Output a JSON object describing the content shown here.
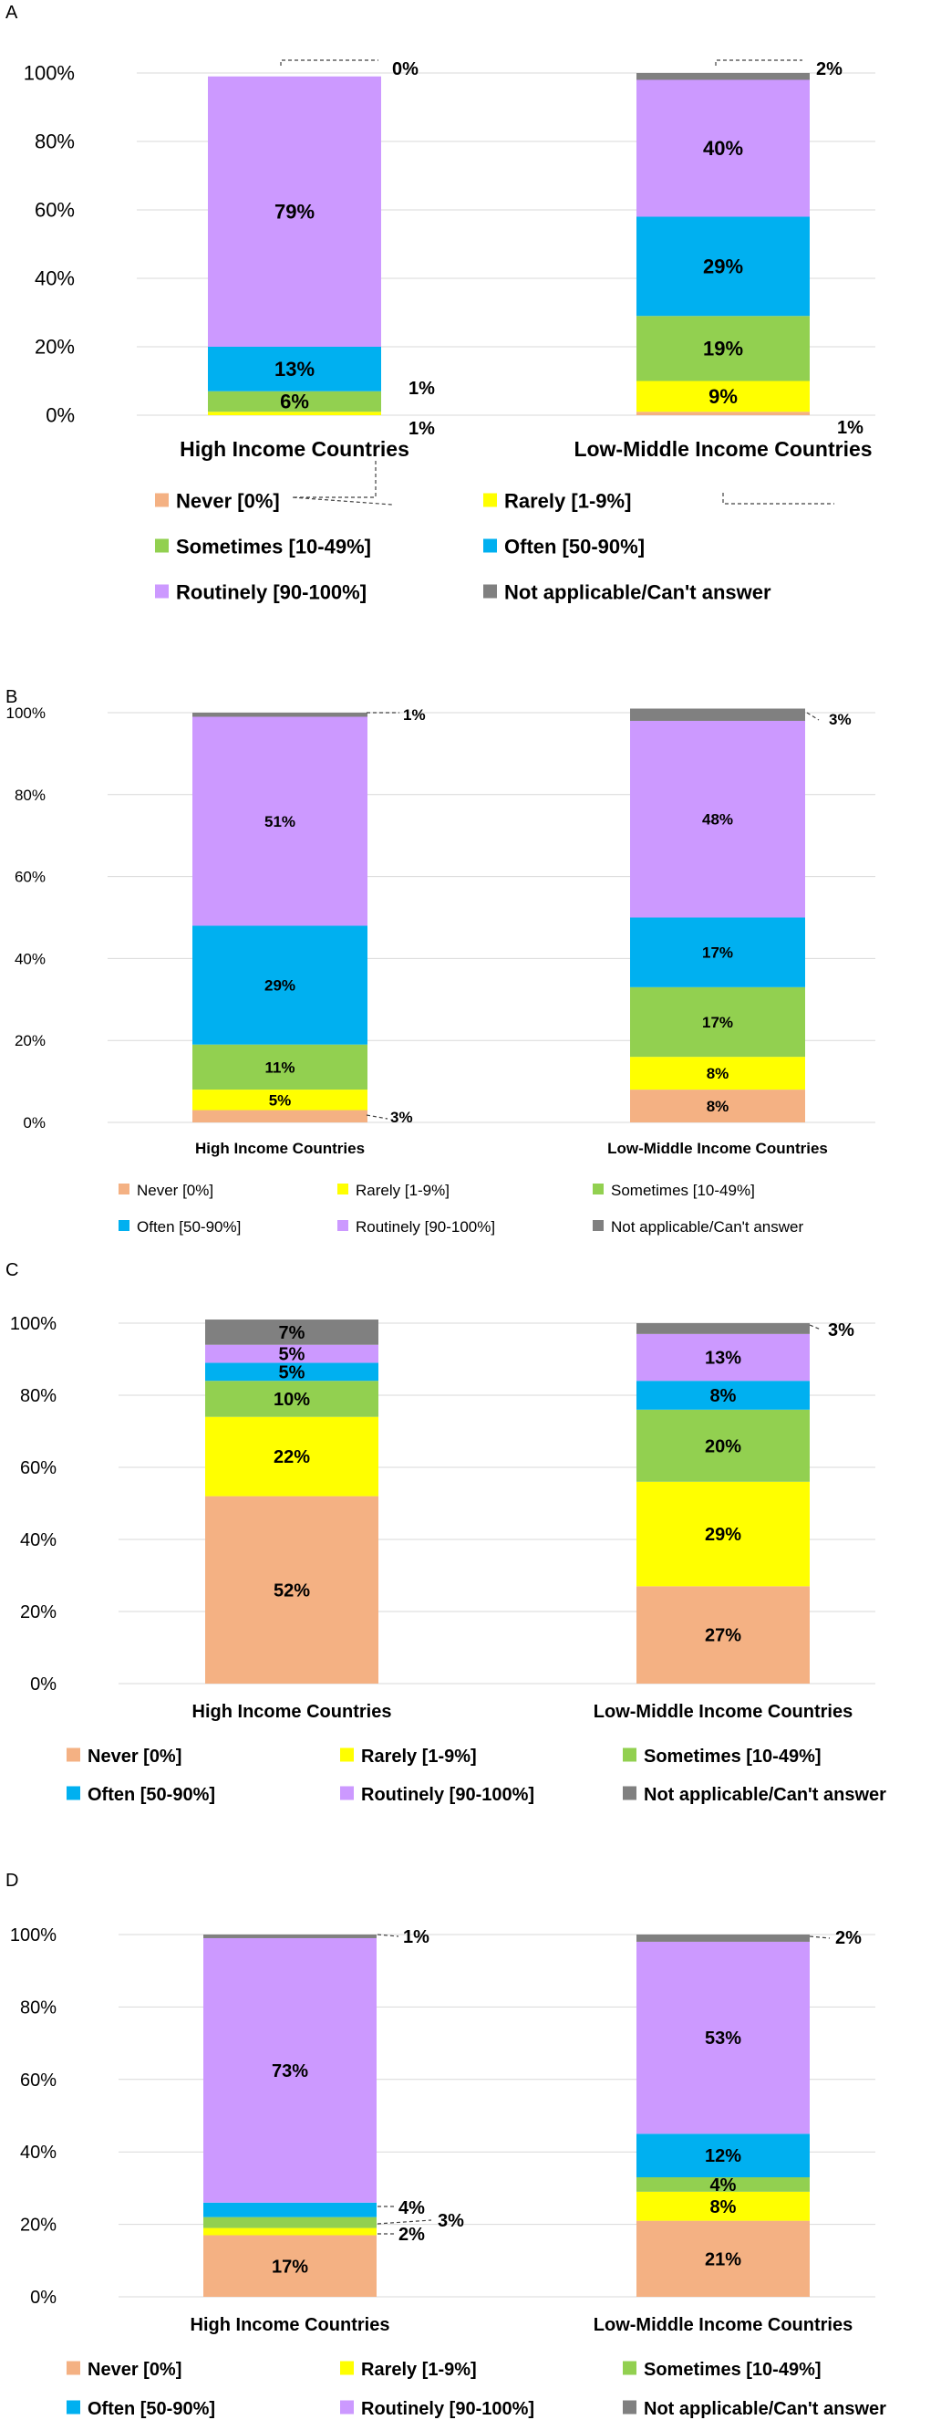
{
  "colors": {
    "never": "#F4B183",
    "rarely": "#FFFF00",
    "sometimes": "#92D050",
    "often": "#00B0F0",
    "routinely": "#CC99FF",
    "na": "#808080"
  },
  "legend_labels": {
    "never": "Never [0%]",
    "rarely": "Rarely [1-9%]",
    "sometimes": "Sometimes [10-49%]",
    "often": "Often [50-90%]",
    "routinely": "Routinely [90-100%]",
    "na": "Not applicable/Can't answer"
  },
  "chart_data": [
    {
      "type": "bar",
      "stacked": true,
      "panel_label": "A",
      "categories": [
        "High Income Countries",
        "Low-Middle Income Countries"
      ],
      "ylim": [
        0,
        100
      ],
      "yticks": [
        "0%",
        "20%",
        "40%",
        "60%",
        "80%",
        "100%"
      ],
      "series": [
        {
          "key": "never",
          "values": [
            0,
            1
          ],
          "labels": [
            "",
            ""
          ]
        },
        {
          "key": "rarely",
          "values": [
            1,
            9
          ],
          "labels": [
            "",
            "9%"
          ]
        },
        {
          "key": "sometimes",
          "values": [
            6,
            19
          ],
          "labels": [
            "6%",
            "19%"
          ]
        },
        {
          "key": "often",
          "values": [
            13,
            29
          ],
          "labels": [
            "13%",
            "29%"
          ]
        },
        {
          "key": "routinely",
          "values": [
            79,
            40
          ],
          "labels": [
            "79%",
            "40%"
          ]
        },
        {
          "key": "na",
          "values": [
            0,
            2
          ],
          "labels": [
            "",
            ""
          ]
        }
      ],
      "callouts": [
        "0%",
        "1%",
        "1%",
        "2%",
        "1%"
      ]
    },
    {
      "type": "bar",
      "stacked": true,
      "panel_label": "B",
      "categories": [
        "High Income Countries",
        "Low-Middle Income Countries"
      ],
      "ylim": [
        0,
        100
      ],
      "yticks": [
        "0%",
        "20%",
        "40%",
        "60%",
        "80%",
        "100%"
      ],
      "series": [
        {
          "key": "never",
          "values": [
            3,
            8
          ],
          "labels": [
            "",
            "8%"
          ]
        },
        {
          "key": "rarely",
          "values": [
            5,
            8
          ],
          "labels": [
            "5%",
            "8%"
          ]
        },
        {
          "key": "sometimes",
          "values": [
            11,
            17
          ],
          "labels": [
            "11%",
            "17%"
          ]
        },
        {
          "key": "often",
          "values": [
            29,
            17
          ],
          "labels": [
            "29%",
            "17%"
          ]
        },
        {
          "key": "routinely",
          "values": [
            51,
            48
          ],
          "labels": [
            "51%",
            "48%"
          ]
        },
        {
          "key": "na",
          "values": [
            1,
            3
          ],
          "labels": [
            "",
            ""
          ]
        }
      ],
      "callouts": [
        "1%",
        "3%",
        "3%"
      ]
    },
    {
      "type": "bar",
      "stacked": true,
      "panel_label": "C",
      "categories": [
        "High Income Countries",
        "Low-Middle Income Countries"
      ],
      "ylim": [
        0,
        100
      ],
      "yticks": [
        "0%",
        "20%",
        "40%",
        "60%",
        "80%",
        "100%"
      ],
      "series": [
        {
          "key": "never",
          "values": [
            52,
            27
          ],
          "labels": [
            "52%",
            "27%"
          ]
        },
        {
          "key": "rarely",
          "values": [
            22,
            29
          ],
          "labels": [
            "22%",
            "29%"
          ]
        },
        {
          "key": "sometimes",
          "values": [
            10,
            20
          ],
          "labels": [
            "10%",
            "20%"
          ]
        },
        {
          "key": "often",
          "values": [
            5,
            8
          ],
          "labels": [
            "5%",
            "8%"
          ]
        },
        {
          "key": "routinely",
          "values": [
            5,
            13
          ],
          "labels": [
            "5%",
            "13%"
          ]
        },
        {
          "key": "na",
          "values": [
            7,
            3
          ],
          "labels": [
            "7%",
            ""
          ]
        }
      ],
      "callouts": [
        "3%"
      ]
    },
    {
      "type": "bar",
      "stacked": true,
      "panel_label": "D",
      "categories": [
        "High Income Countries",
        "Low-Middle Income Countries"
      ],
      "ylim": [
        0,
        100
      ],
      "yticks": [
        "0%",
        "20%",
        "40%",
        "60%",
        "80%",
        "100%"
      ],
      "series": [
        {
          "key": "never",
          "values": [
            17,
            21
          ],
          "labels": [
            "17%",
            "21%"
          ]
        },
        {
          "key": "rarely",
          "values": [
            2,
            8
          ],
          "labels": [
            "",
            "8%"
          ]
        },
        {
          "key": "sometimes",
          "values": [
            3,
            4
          ],
          "labels": [
            "",
            "4%"
          ]
        },
        {
          "key": "often",
          "values": [
            4,
            12
          ],
          "labels": [
            "",
            "12%"
          ]
        },
        {
          "key": "routinely",
          "values": [
            73,
            53
          ],
          "labels": [
            "73%",
            "53%"
          ]
        },
        {
          "key": "na",
          "values": [
            1,
            2
          ],
          "labels": [
            "",
            ""
          ]
        }
      ],
      "callouts": [
        "1%",
        "4%",
        "2%",
        "3%",
        "2%"
      ]
    }
  ]
}
